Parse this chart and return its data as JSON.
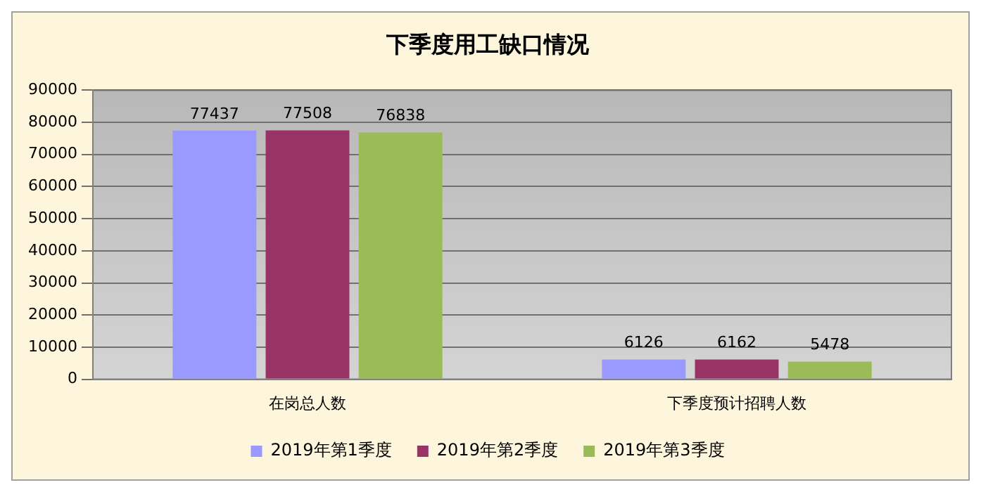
{
  "chart_data": {
    "type": "bar",
    "title": "下季度用工缺口情况",
    "categories": [
      "在岗总人数",
      "下季度预计招聘人数"
    ],
    "series": [
      {
        "name": "2019年第1季度",
        "color": "#9999ff",
        "values": [
          77437,
          6126
        ]
      },
      {
        "name": "2019年第2季度",
        "color": "#993366",
        "values": [
          77508,
          6162
        ]
      },
      {
        "name": "2019年第3季度",
        "color": "#9bbb59",
        "values": [
          76838,
          5478
        ]
      }
    ],
    "ylim": [
      0,
      90000
    ],
    "yticks": [
      0,
      10000,
      20000,
      30000,
      40000,
      50000,
      60000,
      70000,
      80000,
      90000
    ],
    "grid": "y",
    "legend": "bottom",
    "data_labels": true
  }
}
